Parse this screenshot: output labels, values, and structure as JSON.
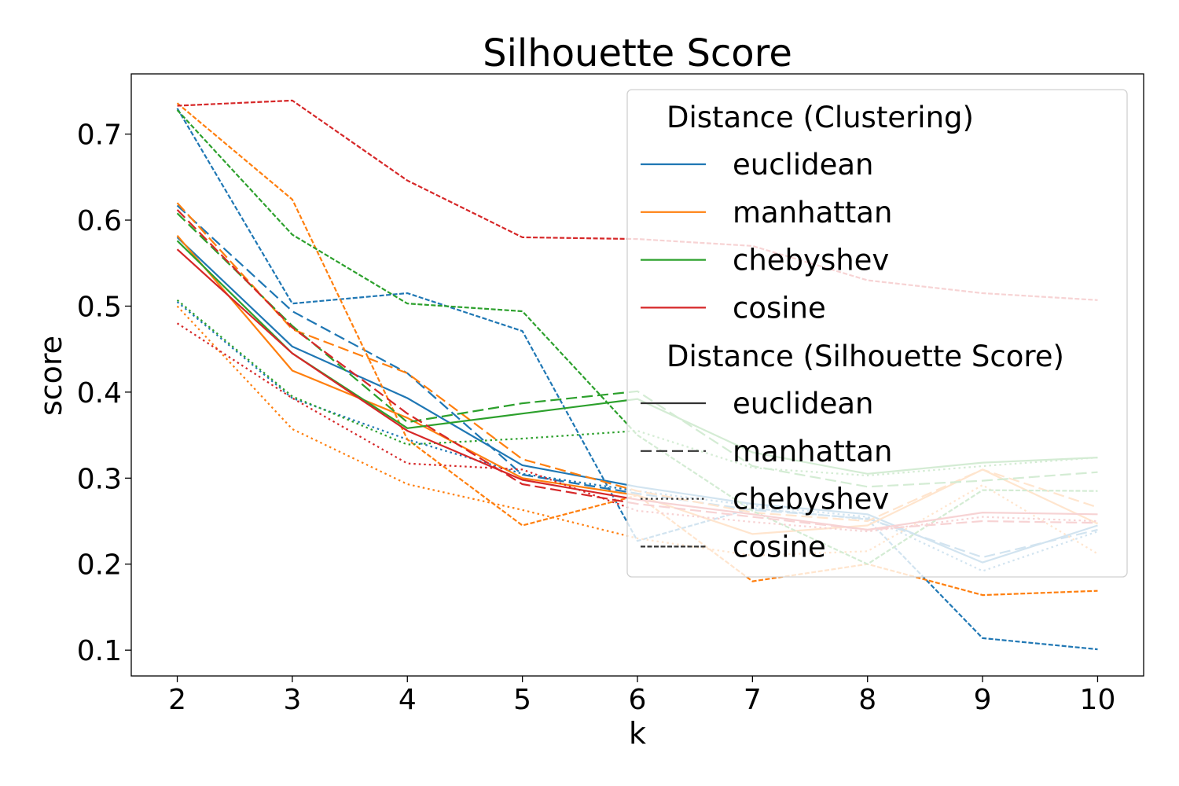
{
  "chart_data": {
    "type": "line",
    "title": "Silhouette Score",
    "xlabel": "k",
    "ylabel": "score",
    "x": [
      2,
      3,
      4,
      5,
      6,
      7,
      8,
      9,
      10
    ],
    "xlim": [
      1.6,
      10.4
    ],
    "ylim": [
      0.07,
      0.77
    ],
    "xticks": [
      "2",
      "3",
      "4",
      "5",
      "6",
      "7",
      "8",
      "9",
      "10"
    ],
    "yticks": [
      {
        "value": 0.1,
        "label": "0.1"
      },
      {
        "value": 0.2,
        "label": "0.2"
      },
      {
        "value": 0.3,
        "label": "0.3"
      },
      {
        "value": 0.4,
        "label": "0.4"
      },
      {
        "value": 0.5,
        "label": "0.5"
      },
      {
        "value": 0.6,
        "label": "0.6"
      },
      {
        "value": 0.7,
        "label": "0.7"
      }
    ],
    "grid": false,
    "legend_placement": "top-right",
    "colors": {
      "euclidean": "#1f77b4",
      "manhattan": "#ff7f0e",
      "chebyshev": "#2ca02c",
      "cosine": "#d62728",
      "style_key": "#333333"
    },
    "legend": {
      "hue_title": "Distance (Clustering)",
      "hue_entries": [
        {
          "label": "euclidean",
          "color_key": "euclidean"
        },
        {
          "label": "manhattan",
          "color_key": "manhattan"
        },
        {
          "label": "chebyshev",
          "color_key": "chebyshev"
        },
        {
          "label": "cosine",
          "color_key": "cosine"
        }
      ],
      "style_title": "Distance (Silhouette Score)",
      "style_entries": [
        {
          "label": "euclidean",
          "dash": "solid"
        },
        {
          "label": "manhattan",
          "dash": "dashed"
        },
        {
          "label": "chebyshev",
          "dash": "dotted"
        },
        {
          "label": "cosine",
          "dash": "densely-dashed"
        }
      ]
    },
    "series": [
      {
        "clustering": "euclidean",
        "score": "euclidean",
        "values": [
          0.58,
          0.453,
          0.393,
          0.315,
          0.29,
          0.27,
          0.258,
          0.202,
          0.245
        ]
      },
      {
        "clustering": "euclidean",
        "score": "manhattan",
        "values": [
          0.617,
          0.494,
          0.422,
          0.304,
          0.282,
          0.263,
          0.253,
          0.208,
          0.24
        ]
      },
      {
        "clustering": "euclidean",
        "score": "chebyshev",
        "values": [
          0.505,
          0.393,
          0.345,
          0.305,
          0.285,
          0.268,
          0.255,
          0.192,
          0.238
        ]
      },
      {
        "clustering": "euclidean",
        "score": "cosine",
        "values": [
          0.73,
          0.503,
          0.515,
          0.471,
          0.227,
          0.265,
          0.252,
          0.114,
          0.101
        ]
      },
      {
        "clustering": "manhattan",
        "score": "euclidean",
        "values": [
          0.582,
          0.425,
          0.37,
          0.3,
          0.28,
          0.235,
          0.245,
          0.31,
          0.247
        ]
      },
      {
        "clustering": "manhattan",
        "score": "manhattan",
        "values": [
          0.62,
          0.473,
          0.422,
          0.322,
          0.285,
          0.26,
          0.25,
          0.31,
          0.266
        ]
      },
      {
        "clustering": "manhattan",
        "score": "chebyshev",
        "values": [
          0.5,
          0.357,
          0.293,
          0.263,
          0.23,
          0.21,
          0.215,
          0.292,
          0.212
        ]
      },
      {
        "clustering": "manhattan",
        "score": "cosine",
        "values": [
          0.736,
          0.624,
          0.345,
          0.245,
          0.28,
          0.18,
          0.2,
          0.164,
          0.169
        ]
      },
      {
        "clustering": "chebyshev",
        "score": "euclidean",
        "values": [
          0.576,
          0.445,
          0.358,
          0.375,
          0.392,
          0.33,
          0.305,
          0.318,
          0.324
        ]
      },
      {
        "clustering": "chebyshev",
        "score": "manhattan",
        "values": [
          0.608,
          0.477,
          0.365,
          0.387,
          0.401,
          0.314,
          0.29,
          0.297,
          0.307
        ]
      },
      {
        "clustering": "chebyshev",
        "score": "chebyshev",
        "values": [
          0.507,
          0.395,
          0.339,
          0.346,
          0.355,
          0.312,
          0.303,
          0.314,
          0.324
        ]
      },
      {
        "clustering": "chebyshev",
        "score": "cosine",
        "values": [
          0.728,
          0.583,
          0.503,
          0.494,
          0.35,
          0.262,
          0.2,
          0.286,
          0.285
        ]
      },
      {
        "clustering": "cosine",
        "score": "euclidean",
        "values": [
          0.566,
          0.445,
          0.355,
          0.298,
          0.275,
          0.258,
          0.24,
          0.26,
          0.258
        ]
      },
      {
        "clustering": "cosine",
        "score": "manhattan",
        "values": [
          0.612,
          0.475,
          0.375,
          0.293,
          0.27,
          0.255,
          0.24,
          0.25,
          0.248
        ]
      },
      {
        "clustering": "cosine",
        "score": "chebyshev",
        "values": [
          0.48,
          0.393,
          0.317,
          0.31,
          0.262,
          0.249,
          0.238,
          0.255,
          0.25
        ]
      },
      {
        "clustering": "cosine",
        "score": "cosine",
        "values": [
          0.733,
          0.739,
          0.646,
          0.58,
          0.578,
          0.57,
          0.53,
          0.515,
          0.507
        ]
      }
    ]
  }
}
